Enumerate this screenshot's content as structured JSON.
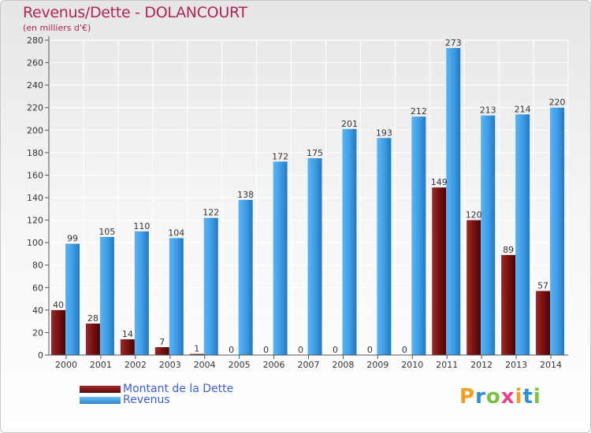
{
  "header": {
    "title": "Revenus/Dette - DOLANCOURT",
    "subtitle": "(en milliers d'€)"
  },
  "legend": {
    "items": [
      {
        "label": "Montant de la Dette",
        "color": "#7a1010"
      },
      {
        "label": "Revenus",
        "color": "#3f9ee6"
      }
    ]
  },
  "logo": {
    "letters": [
      "P",
      "r",
      "o",
      "x",
      "i",
      "t",
      "i"
    ],
    "colors": [
      "#f2a020",
      "#2e8fd8",
      "#7ac043",
      "#e83e8c",
      "#f2a020",
      "#2e8fd8",
      "#7ac043"
    ]
  },
  "chart_data": {
    "type": "bar",
    "title": "Revenus/Dette - DOLANCOURT",
    "ylabel": "(en milliers d'€)",
    "xlabel": "",
    "ylim": [
      0,
      280
    ],
    "yticks": [
      0,
      20,
      40,
      60,
      80,
      100,
      120,
      140,
      160,
      180,
      200,
      220,
      240,
      260,
      280
    ],
    "grid": true,
    "categories": [
      "2000",
      "2001",
      "2002",
      "2003",
      "2004",
      "2005",
      "2006",
      "2007",
      "2008",
      "2009",
      "2010",
      "2011",
      "2012",
      "2013",
      "2014"
    ],
    "series": [
      {
        "name": "Montant de la Dette",
        "color": "#7a1010",
        "values": [
          40,
          28,
          14,
          7,
          1,
          0,
          0,
          0,
          0,
          0,
          0,
          149,
          120,
          89,
          57
        ]
      },
      {
        "name": "Revenus",
        "color": "#3f9ee6",
        "values": [
          99,
          105,
          110,
          104,
          122,
          138,
          172,
          175,
          201,
          193,
          212,
          273,
          213,
          214,
          220
        ]
      }
    ]
  }
}
